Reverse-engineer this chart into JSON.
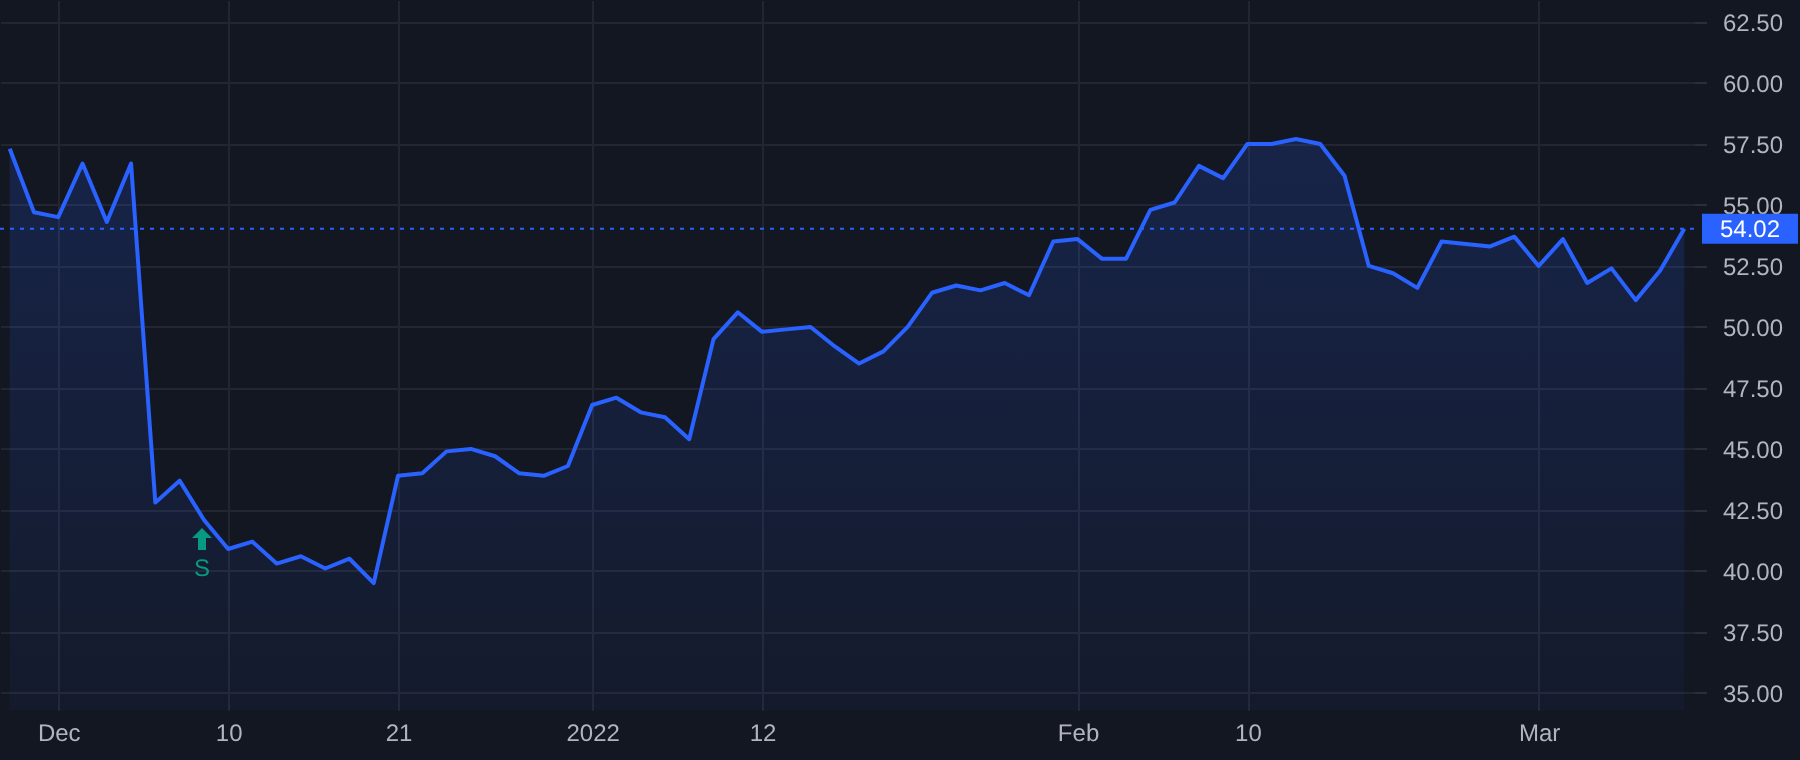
{
  "chart_data": {
    "type": "area",
    "categories": [
      null,
      null,
      "Dec",
      null,
      null,
      null,
      null,
      null,
      null,
      "10",
      null,
      null,
      null,
      null,
      null,
      null,
      "21",
      null,
      null,
      null,
      null,
      null,
      null,
      null,
      "2022",
      null,
      null,
      null,
      null,
      null,
      null,
      "12",
      null,
      null,
      null,
      null,
      null,
      null,
      null,
      null,
      null,
      null,
      null,
      null,
      "Feb",
      null,
      null,
      null,
      null,
      null,
      null,
      "10",
      null,
      null,
      null,
      null,
      null,
      null,
      null,
      null,
      null,
      null,
      null,
      "Mar",
      null,
      null,
      null,
      null,
      null,
      null
    ],
    "series": [
      {
        "color": "#2962ff",
        "values": [
          57.3,
          54.7,
          54.5,
          56.7,
          54.3,
          56.7,
          42.8,
          43.7,
          42.1,
          40.9,
          41.2,
          40.3,
          40.6,
          40.1,
          40.5,
          39.5,
          43.9,
          44.0,
          44.9,
          45.0,
          44.7,
          44.0,
          43.9,
          44.3,
          46.8,
          47.1,
          46.5,
          46.3,
          45.4,
          49.5,
          50.6,
          49.8,
          49.9,
          50.0,
          49.2,
          48.5,
          49.0,
          50.0,
          51.4,
          51.7,
          51.5,
          51.8,
          51.3,
          53.5,
          53.6,
          52.8,
          52.8,
          54.8,
          55.1,
          56.6,
          56.1,
          57.5,
          57.5,
          57.7,
          57.5,
          56.2,
          52.5,
          52.2,
          51.6,
          53.5,
          53.4,
          53.3,
          53.7,
          52.5,
          53.6,
          51.8,
          52.4,
          51.1,
          52.3,
          54.02
        ]
      }
    ],
    "ylim": [
      34.3,
      63.4
    ],
    "yticks": [
      {
        "value": 35,
        "label": "35.00"
      },
      {
        "value": 37.5,
        "label": "37.50"
      },
      {
        "value": 40,
        "label": "40.00"
      },
      {
        "value": 42.5,
        "label": "42.50"
      },
      {
        "value": 45,
        "label": "45.00"
      },
      {
        "value": 47.5,
        "label": "47.50"
      },
      {
        "value": 50,
        "label": "50.00"
      },
      {
        "value": 52.5,
        "label": "52.50"
      },
      {
        "value": 55,
        "label": "55.00"
      },
      {
        "value": 57.5,
        "label": "57.50"
      },
      {
        "value": 60,
        "label": "60.00"
      },
      {
        "value": 62.5,
        "label": "62.50"
      }
    ],
    "ref_lines": [
      {
        "axis": "y",
        "value": 54.02,
        "label": "54.02",
        "color": "#2962ff",
        "line_style": "dotted"
      }
    ],
    "annotations": [
      "S"
    ],
    "grid": true,
    "marker": "none"
  }
}
